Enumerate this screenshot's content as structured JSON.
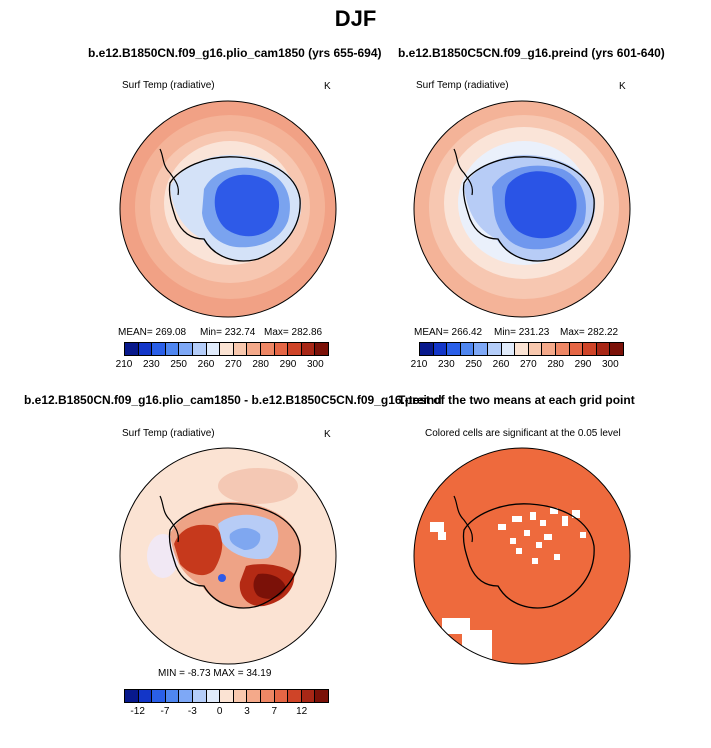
{
  "title": "DJF",
  "panels": {
    "top_left": {
      "title": "b.e12.B1850CN.f09_g16.plio_cam1850 (yrs 655-694)",
      "subtitle": "Surf Temp (radiative)",
      "units": "K",
      "stats": {
        "mean": "MEAN= 269.08",
        "min": "Min= 232.74",
        "max": "Max= 282.86"
      }
    },
    "top_right": {
      "title": "b.e12.B1850C5CN.f09_g16.preind (yrs 601-640)",
      "subtitle": "Surf Temp (radiative)",
      "units": "K",
      "stats": {
        "mean": "MEAN= 266.42",
        "min": "Min= 231.23",
        "max": "Max= 282.22"
      }
    },
    "bottom_left": {
      "title": "b.e12.B1850CN.f09_g16.plio_cam1850 - b.e12.B1850C5CN.f09_g16.preind",
      "subtitle": "Surf Temp (radiative)",
      "units": "K",
      "stats": "MIN =  -8.73 MAX =  34.19"
    },
    "bottom_right": {
      "title": "T-test of the two means at each grid point",
      "subtitle": "Colored cells are significant at the 0.05 level"
    }
  },
  "colorbars": {
    "absolute": {
      "colors": [
        "#08198c",
        "#1336c8",
        "#2a5fe8",
        "#4f86f0",
        "#7ea8f6",
        "#b4cdf9",
        "#e0ebfb",
        "#fbe3d3",
        "#f8c8ae",
        "#f4a98a",
        "#ee8765",
        "#e56645",
        "#cf4428",
        "#a82716",
        "#7b1108"
      ],
      "labels": [
        "210",
        "230",
        "250",
        "260",
        "270",
        "280",
        "290",
        "300"
      ]
    },
    "difference": {
      "colors": [
        "#08198c",
        "#1336c8",
        "#2a5fe8",
        "#4f86f0",
        "#7ea8f6",
        "#b4cdf9",
        "#e0ebfb",
        "#fbe3d3",
        "#f8c8ae",
        "#f4a98a",
        "#ee8765",
        "#e56645",
        "#cf4428",
        "#a82716",
        "#7b1108"
      ],
      "labels": [
        "-12",
        "-7",
        "-3",
        "0",
        "3",
        "7",
        "12"
      ]
    }
  },
  "colors": {
    "significant": "#ee6a3d",
    "ocean_outer": "#f1a185",
    "ocean_mid": "#f7c7b1",
    "ocean_inner": "#fae4d8",
    "ice_light": "#d4e2f8",
    "ice_mid": "#7aa3ef",
    "ice_dark": "#2e5ae8"
  }
}
